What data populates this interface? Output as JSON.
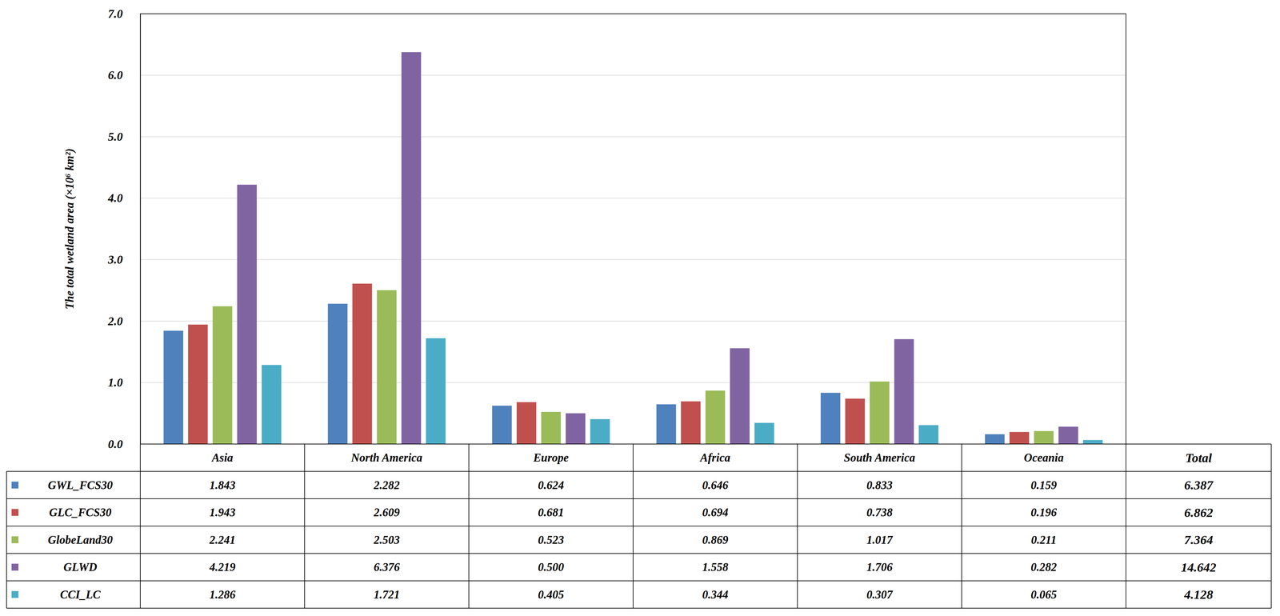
{
  "chart_data": {
    "type": "bar",
    "y_label": "The total wetland area (×10⁶ km²)",
    "categories": [
      "Asia",
      "North America",
      "Europe",
      "Africa",
      "South America",
      "Oceania"
    ],
    "ylim": [
      0,
      7
    ],
    "yticks": [
      {
        "value": 0,
        "label": "0.0"
      },
      {
        "value": 1,
        "label": "1.0"
      },
      {
        "value": 2,
        "label": "2.0"
      },
      {
        "value": 3,
        "label": "3.0"
      },
      {
        "value": 4,
        "label": "4.0"
      },
      {
        "value": 5,
        "label": "5.0"
      },
      {
        "value": 6,
        "label": "6.0"
      },
      {
        "value": 7,
        "label": "7.0"
      }
    ],
    "grid": true,
    "total_label": "Total",
    "series": [
      {
        "name": "GWL_FCS30",
        "color": "#4f81bd",
        "values": [
          1.843,
          2.282,
          0.624,
          0.646,
          0.833,
          0.159
        ],
        "value_labels": [
          "1.843",
          "2.282",
          "0.624",
          "0.646",
          "0.833",
          "0.159"
        ],
        "total": 6.387
      },
      {
        "name": "GLC_FCS30",
        "color": "#c0504d",
        "values": [
          1.943,
          2.609,
          0.681,
          0.694,
          0.738,
          0.196
        ],
        "value_labels": [
          "1.943",
          "2.609",
          "0.681",
          "0.694",
          "0.738",
          "0.196"
        ],
        "total": 6.862
      },
      {
        "name": "GlobeLand30",
        "color": "#9bbb59",
        "values": [
          2.241,
          2.503,
          0.523,
          0.869,
          1.017,
          0.211
        ],
        "value_labels": [
          "2.241",
          "2.503",
          "0.523",
          "0.869",
          "1.017",
          "0.211"
        ],
        "total": 7.364
      },
      {
        "name": "GLWD",
        "color": "#8064a2",
        "values": [
          4.219,
          6.376,
          0.5,
          1.558,
          1.706,
          0.282
        ],
        "value_labels": [
          "4.219",
          "6.376",
          "0.500",
          "1.558",
          "1.706",
          "0.282"
        ],
        "total": 14.642
      },
      {
        "name": "CCI_LC",
        "color": "#4bacc6",
        "values": [
          1.286,
          1.721,
          0.405,
          0.344,
          0.307,
          0.065
        ],
        "value_labels": [
          "1.286",
          "1.721",
          "0.405",
          "0.344",
          "0.307",
          "0.065"
        ],
        "total": 4.128
      }
    ]
  }
}
